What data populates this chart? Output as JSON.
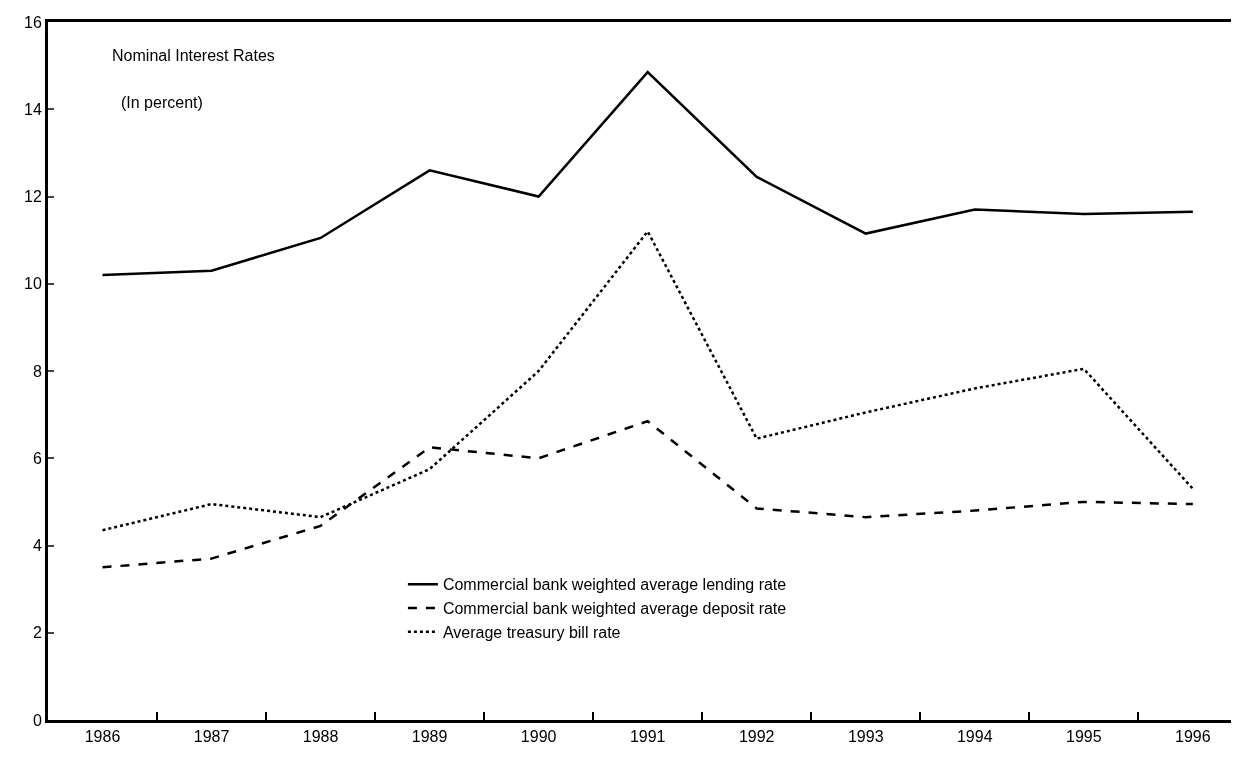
{
  "chart_data": {
    "type": "line",
    "title": "Nominal Interest Rates",
    "ylabel": "(In percent)",
    "categories": [
      "1986",
      "1987",
      "1988",
      "1989",
      "1990",
      "1991",
      "1992",
      "1993",
      "1994",
      "1995",
      "1996"
    ],
    "series": [
      {
        "name": "Commercial bank weighted average lending rate",
        "color": "#000000",
        "line_style": "solid",
        "values": [
          10.2,
          10.3,
          11.05,
          12.6,
          12.0,
          14.85,
          12.45,
          11.15,
          11.7,
          11.6,
          11.65
        ]
      },
      {
        "name": "Commercial bank weighted average deposit rate",
        "color": "#000000",
        "line_style": "dashed",
        "values": [
          3.5,
          3.7,
          4.45,
          6.25,
          6.0,
          6.85,
          4.85,
          4.65,
          4.8,
          5.0,
          4.95
        ]
      },
      {
        "name": "Average treasury bill rate",
        "color": "#000000",
        "line_style": "dotted",
        "values": [
          4.35,
          4.95,
          4.65,
          5.75,
          8.0,
          11.2,
          6.45,
          7.05,
          7.6,
          8.05,
          5.3
        ]
      }
    ],
    "ylim": [
      0,
      16
    ],
    "yticks": [
      0,
      2,
      4,
      6,
      8,
      10,
      12,
      14,
      16
    ],
    "grid": false,
    "legend": "bottom",
    "marker": "none"
  }
}
